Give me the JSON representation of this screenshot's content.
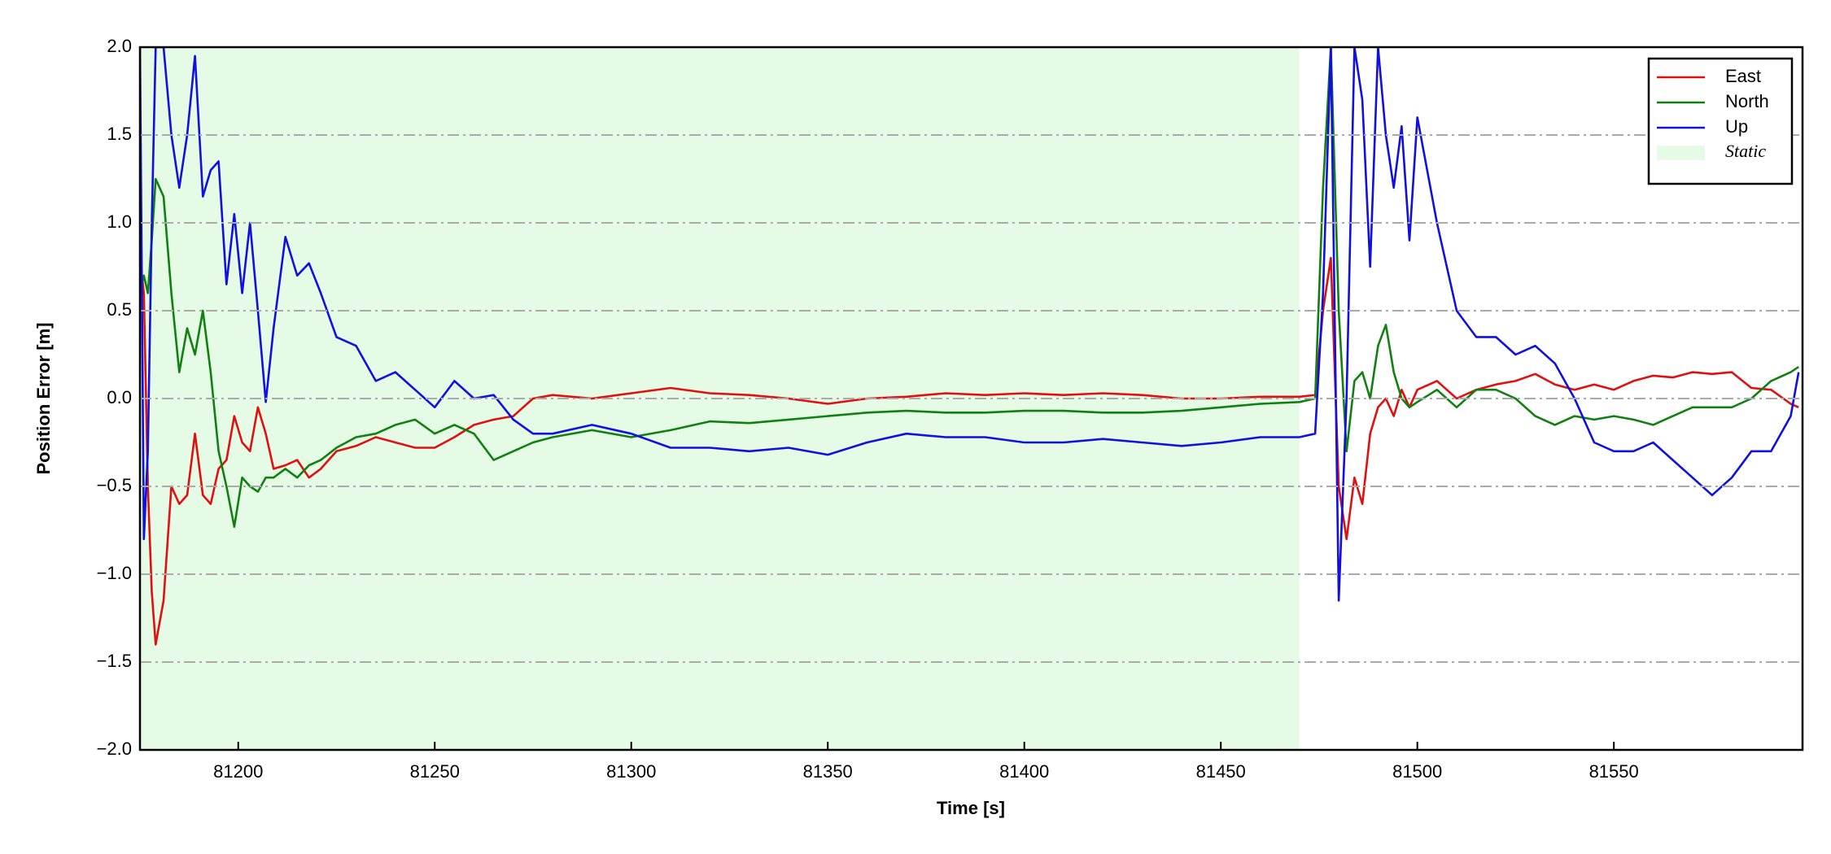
{
  "chart_data": {
    "type": "line",
    "xlabel": "Time [s]",
    "ylabel": "Position Error [m]",
    "xlim": [
      81175,
      81598
    ],
    "ylim": [
      -2,
      2
    ],
    "xticks": [
      81200,
      81250,
      81300,
      81350,
      81400,
      81450,
      81500,
      81550
    ],
    "yticks": [
      {
        "value": -2,
        "label": "−2.0"
      },
      {
        "value": -1.5,
        "label": "−1.5"
      },
      {
        "value": -1,
        "label": "−1.0"
      },
      {
        "value": -0.5,
        "label": "−0.5"
      },
      {
        "value": 0,
        "label": "0.0"
      },
      {
        "value": 0.5,
        "label": "0.5"
      },
      {
        "value": 1,
        "label": "1.0"
      },
      {
        "value": 1.5,
        "label": "1.5"
      },
      {
        "value": 2,
        "label": "2.0"
      }
    ],
    "grid": true,
    "legend_position": "upper-right",
    "shaded_regions": [
      {
        "name": "Static",
        "color": "#e6fbe6",
        "start": 81175,
        "end": 81470
      }
    ],
    "x": [
      81175,
      81176,
      81177,
      81178,
      81179,
      81181,
      81183,
      81185,
      81187,
      81189,
      81191,
      81193,
      81195,
      81197,
      81199,
      81201,
      81203,
      81205,
      81207,
      81209,
      81212,
      81215,
      81218,
      81221,
      81225,
      81230,
      81235,
      81240,
      81245,
      81250,
      81255,
      81260,
      81265,
      81270,
      81275,
      81280,
      81290,
      81300,
      81310,
      81320,
      81330,
      81340,
      81350,
      81360,
      81370,
      81380,
      81390,
      81400,
      81410,
      81420,
      81430,
      81440,
      81450,
      81460,
      81470,
      81474,
      81476,
      81478,
      81480,
      81482,
      81484,
      81486,
      81488,
      81490,
      81492,
      81494,
      81496,
      81498,
      81500,
      81505,
      81510,
      81515,
      81520,
      81525,
      81530,
      81535,
      81540,
      81545,
      81550,
      81555,
      81560,
      81565,
      81570,
      81575,
      81580,
      81585,
      81590,
      81595,
      81597
    ],
    "series": [
      {
        "name": "East",
        "color": "#e01010",
        "values": [
          0.8,
          0.6,
          -0.5,
          -1.1,
          -1.4,
          -1.15,
          -0.5,
          -0.6,
          -0.55,
          -0.2,
          -0.55,
          -0.6,
          -0.4,
          -0.35,
          -0.1,
          -0.25,
          -0.3,
          -0.05,
          -0.2,
          -0.4,
          -0.38,
          -0.35,
          -0.45,
          -0.4,
          -0.3,
          -0.27,
          -0.22,
          -0.25,
          -0.28,
          -0.28,
          -0.22,
          -0.15,
          -0.12,
          -0.1,
          0.0,
          0.02,
          0.0,
          0.03,
          0.06,
          0.03,
          0.02,
          0.0,
          -0.03,
          0.0,
          0.01,
          0.03,
          0.02,
          0.03,
          0.02,
          0.03,
          0.02,
          0.0,
          0.0,
          0.01,
          0.01,
          0.02,
          0.5,
          0.8,
          -0.5,
          -0.8,
          -0.45,
          -0.6,
          -0.2,
          -0.05,
          0.0,
          -0.1,
          0.05,
          -0.05,
          0.05,
          0.1,
          0.0,
          0.05,
          0.08,
          0.1,
          0.14,
          0.08,
          0.05,
          0.08,
          0.05,
          0.1,
          0.13,
          0.12,
          0.15,
          0.14,
          0.15,
          0.06,
          0.05,
          -0.03,
          -0.05
        ]
      },
      {
        "name": "North",
        "color": "#108010",
        "values": [
          0.6,
          0.7,
          0.6,
          0.9,
          1.25,
          1.15,
          0.6,
          0.15,
          0.4,
          0.25,
          0.5,
          0.15,
          -0.3,
          -0.5,
          -0.73,
          -0.45,
          -0.5,
          -0.53,
          -0.45,
          -0.45,
          -0.4,
          -0.45,
          -0.38,
          -0.35,
          -0.28,
          -0.22,
          -0.2,
          -0.15,
          -0.12,
          -0.2,
          -0.15,
          -0.2,
          -0.35,
          -0.3,
          -0.25,
          -0.22,
          -0.18,
          -0.22,
          -0.18,
          -0.13,
          -0.14,
          -0.12,
          -0.1,
          -0.08,
          -0.07,
          -0.08,
          -0.08,
          -0.07,
          -0.07,
          -0.08,
          -0.08,
          -0.07,
          -0.05,
          -0.03,
          -0.02,
          0.0,
          1.2,
          2.0,
          0.5,
          -0.3,
          0.1,
          0.15,
          0.0,
          0.3,
          0.42,
          0.15,
          0.0,
          -0.05,
          -0.02,
          0.05,
          -0.05,
          0.05,
          0.05,
          0.0,
          -0.1,
          -0.15,
          -0.1,
          -0.12,
          -0.1,
          -0.12,
          -0.15,
          -0.1,
          -0.05,
          -0.05,
          -0.05,
          0.0,
          0.1,
          0.15,
          0.18
        ]
      },
      {
        "name": "Up",
        "color": "#1010e0",
        "values": [
          2.0,
          -0.8,
          -0.3,
          1.0,
          2.0,
          2.0,
          1.5,
          1.2,
          1.5,
          1.95,
          1.15,
          1.3,
          1.35,
          0.65,
          1.05,
          0.6,
          1.0,
          0.5,
          -0.02,
          0.4,
          0.92,
          0.7,
          0.77,
          0.6,
          0.35,
          0.3,
          0.1,
          0.15,
          0.05,
          -0.05,
          0.1,
          0.0,
          0.02,
          -0.12,
          -0.2,
          -0.2,
          -0.15,
          -0.2,
          -0.28,
          -0.28,
          -0.3,
          -0.28,
          -0.32,
          -0.25,
          -0.2,
          -0.22,
          -0.22,
          -0.25,
          -0.25,
          -0.23,
          -0.25,
          -0.27,
          -0.25,
          -0.22,
          -0.22,
          -0.2,
          0.6,
          2.0,
          -1.15,
          0.0,
          2.0,
          1.7,
          0.75,
          2.0,
          1.5,
          1.2,
          1.55,
          0.9,
          1.6,
          1.0,
          0.5,
          0.35,
          0.35,
          0.25,
          0.3,
          0.2,
          0.0,
          -0.25,
          -0.3,
          -0.3,
          -0.25,
          -0.35,
          -0.45,
          -0.55,
          -0.45,
          -0.3,
          -0.3,
          -0.1,
          0.15
        ]
      }
    ]
  }
}
